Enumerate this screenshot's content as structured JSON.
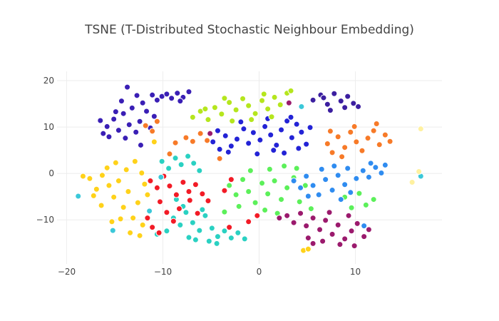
{
  "chart_data": {
    "type": "scatter",
    "title": "TSNE (T-Distributed Stochastic Neighbour Embedding)",
    "xlabel": "",
    "ylabel": "",
    "xlim": [
      -21,
      19
    ],
    "ylim": [
      -19.5,
      22
    ],
    "x_ticks": [
      -20,
      -10,
      0,
      10
    ],
    "x_tick_labels": [
      "−20",
      "−10",
      "0",
      "10"
    ],
    "y_ticks": [
      -10,
      0,
      10,
      20
    ],
    "y_tick_labels": [
      "−10",
      "0",
      "10",
      "20"
    ],
    "grid": true,
    "legend": "none",
    "marker_outline": "#ffffff",
    "series": [
      {
        "color": "#3a1fb5",
        "points": [
          [
            -16.2,
            8.6
          ],
          [
            -15.8,
            10.1
          ],
          [
            -15.1,
            11.7
          ],
          [
            -14.6,
            9.3
          ],
          [
            -14.1,
            12.9
          ],
          [
            -13.5,
            10.5
          ],
          [
            -13.2,
            14.1
          ],
          [
            -12.8,
            8.9
          ],
          [
            -12.4,
            11.2
          ],
          [
            -12.1,
            15.2
          ],
          [
            -11.7,
            13.4
          ],
          [
            -11.3,
            9.8
          ],
          [
            -10.9,
            12.3
          ],
          [
            -10.6,
            15.8
          ],
          [
            -10.1,
            16.6
          ],
          [
            -9.6,
            17.1
          ],
          [
            -9.1,
            16.2
          ],
          [
            -8.5,
            17.3
          ],
          [
            -7.9,
            16.4
          ],
          [
            -7.3,
            17.6
          ],
          [
            -13.7,
            18.6
          ],
          [
            -14.9,
            13.3
          ],
          [
            -15.6,
            7.9
          ],
          [
            -12.7,
            16.8
          ],
          [
            -8.2,
            15.6
          ],
          [
            -11.1,
            16.9
          ],
          [
            -13.9,
            7.6
          ],
          [
            -12.3,
            6.1
          ],
          [
            -16.5,
            11.4
          ],
          [
            -14.3,
            15.6
          ]
        ]
      },
      {
        "color": "#2323d6",
        "points": [
          [
            -4.8,
            6.8
          ],
          [
            -4.1,
            5.2
          ],
          [
            -3.5,
            8.1
          ],
          [
            -2.9,
            5.9
          ],
          [
            -2.3,
            7.4
          ],
          [
            -1.6,
            9.6
          ],
          [
            -1.1,
            6.5
          ],
          [
            -0.6,
            8.8
          ],
          [
            0.1,
            7.2
          ],
          [
            0.6,
            10.1
          ],
          [
            1.2,
            8.3
          ],
          [
            1.8,
            6.1
          ],
          [
            2.3,
            9.4
          ],
          [
            2.9,
            11.3
          ],
          [
            3.4,
            7.7
          ],
          [
            3.9,
            10.6
          ],
          [
            4.4,
            8.9
          ],
          [
            4.9,
            6.3
          ],
          [
            5.3,
            9.9
          ],
          [
            -3.2,
            4.6
          ],
          [
            -0.2,
            4.2
          ],
          [
            1.5,
            5.0
          ],
          [
            2.6,
            4.4
          ],
          [
            4.1,
            5.4
          ],
          [
            -1.9,
            11.1
          ],
          [
            0.9,
            11.8
          ],
          [
            -4.3,
            9.2
          ],
          [
            3.3,
            12.1
          ]
        ]
      },
      {
        "color": "#3c1fa0",
        "points": [
          [
            5.6,
            15.8
          ],
          [
            6.4,
            16.9
          ],
          [
            7.1,
            14.9
          ],
          [
            7.8,
            17.2
          ],
          [
            8.5,
            15.6
          ],
          [
            9.2,
            16.6
          ],
          [
            9.8,
            15.1
          ],
          [
            10.3,
            14.4
          ],
          [
            7.4,
            13.6
          ],
          [
            6.7,
            16.3
          ],
          [
            8.9,
            14.2
          ]
        ]
      },
      {
        "color": "#b5e61d",
        "points": [
          [
            -6.9,
            12.1
          ],
          [
            -6.1,
            13.4
          ],
          [
            -5.3,
            11.6
          ],
          [
            -4.6,
            14.2
          ],
          [
            -3.9,
            12.8
          ],
          [
            -3.1,
            15.3
          ],
          [
            -2.4,
            13.7
          ],
          [
            -1.7,
            16.1
          ],
          [
            -1.1,
            14.6
          ],
          [
            -0.4,
            12.9
          ],
          [
            0.3,
            15.7
          ],
          [
            0.9,
            13.9
          ],
          [
            1.6,
            16.4
          ],
          [
            2.2,
            14.8
          ],
          [
            2.9,
            17.3
          ],
          [
            3.3,
            17.8
          ],
          [
            -3.6,
            16.2
          ],
          [
            -0.8,
            11.6
          ],
          [
            1.3,
            12.2
          ],
          [
            -5.6,
            13.9
          ],
          [
            -2.8,
            11.3
          ],
          [
            0.5,
            17.1
          ]
        ]
      },
      {
        "color": "#f77a28",
        "points": [
          [
            -11.8,
            10.3
          ],
          [
            -11.1,
            9.1
          ],
          [
            -10.6,
            11.2
          ],
          [
            -7.6,
            7.7
          ],
          [
            -6.9,
            6.9
          ],
          [
            -6.1,
            8.6
          ],
          [
            -8.7,
            6.6
          ],
          [
            -5.4,
            7.1
          ],
          [
            7.1,
            6.4
          ],
          [
            7.6,
            4.5
          ],
          [
            8.2,
            7.9
          ],
          [
            8.9,
            5.6
          ],
          [
            9.5,
            8.9
          ],
          [
            10.1,
            6.8
          ],
          [
            10.7,
            4.9
          ],
          [
            11.3,
            7.6
          ],
          [
            11.9,
            9.2
          ],
          [
            12.5,
            6.2
          ],
          [
            13.1,
            8.3
          ],
          [
            8.6,
            3.6
          ],
          [
            9.9,
            10.1
          ],
          [
            12.2,
            10.7
          ],
          [
            7.4,
            9.1
          ],
          [
            13.6,
            6.9
          ],
          [
            -9.3,
            4.2
          ],
          [
            -4.1,
            3.2
          ]
        ]
      },
      {
        "color": "#2ad1c2",
        "points": [
          [
            -10.1,
            2.6
          ],
          [
            -9.4,
            1.1
          ],
          [
            -8.7,
            3.3
          ],
          [
            -8.1,
            1.9
          ],
          [
            -7.4,
            3.7
          ],
          [
            -6.8,
            2.2
          ],
          [
            -6.2,
            0.6
          ],
          [
            -8.9,
            -9.6
          ],
          [
            -8.2,
            -11.1
          ],
          [
            -7.6,
            -8.4
          ],
          [
            -6.9,
            -10.6
          ],
          [
            -6.2,
            -12.3
          ],
          [
            -5.6,
            -9.1
          ],
          [
            -4.9,
            -11.8
          ],
          [
            -4.3,
            -13.6
          ],
          [
            -3.6,
            -12.4
          ],
          [
            -2.9,
            -13.9
          ],
          [
            -2.2,
            -12.8
          ],
          [
            -1.5,
            -14.1
          ],
          [
            -7.3,
            -13.8
          ],
          [
            -5.2,
            -14.6
          ],
          [
            -8.6,
            -5.6
          ],
          [
            -7.9,
            -7.1
          ],
          [
            -5.9,
            -7.8
          ],
          [
            -10.6,
            -13.1
          ],
          [
            -9.6,
            -12.4
          ],
          [
            -4.4,
            -15.1
          ],
          [
            -6.6,
            -14.3
          ]
        ]
      },
      {
        "color": "#f21b26",
        "points": [
          [
            -11.3,
            -1.6
          ],
          [
            -10.6,
            -3.1
          ],
          [
            -9.9,
            -0.6
          ],
          [
            -9.3,
            -2.7
          ],
          [
            -8.6,
            -4.6
          ],
          [
            -7.9,
            -1.9
          ],
          [
            -7.3,
            -3.9
          ],
          [
            -6.6,
            -2.4
          ],
          [
            -5.9,
            -4.4
          ],
          [
            -10.3,
            -6.1
          ],
          [
            -9.6,
            -8.4
          ],
          [
            -8.9,
            -10.3
          ],
          [
            -8.3,
            -7.6
          ],
          [
            -11.6,
            -9.6
          ],
          [
            -11.1,
            -11.6
          ],
          [
            -10.4,
            -12.8
          ],
          [
            -5.3,
            -5.9
          ],
          [
            -3.6,
            -3.7
          ],
          [
            -2.9,
            -1.3
          ],
          [
            -1.1,
            -10.4
          ],
          [
            -0.2,
            -9.1
          ],
          [
            -3.1,
            -11.6
          ],
          [
            -6.4,
            -8.6
          ],
          [
            -7.2,
            -5.8
          ]
        ]
      },
      {
        "color": "#ffd21a",
        "points": [
          [
            -17.6,
            -1.1
          ],
          [
            -16.9,
            -3.4
          ],
          [
            -16.3,
            -0.4
          ],
          [
            -15.6,
            -2.6
          ],
          [
            -15.1,
            -5.1
          ],
          [
            -14.6,
            -1.6
          ],
          [
            -14.1,
            -7.3
          ],
          [
            -13.6,
            -3.9
          ],
          [
            -13.1,
            -9.6
          ],
          [
            -12.6,
            -6.3
          ],
          [
            -12.1,
            -11.1
          ],
          [
            -11.6,
            -4.6
          ],
          [
            -15.8,
            1.2
          ],
          [
            -14.9,
            2.3
          ],
          [
            -13.8,
            0.8
          ],
          [
            -12.9,
            2.6
          ],
          [
            -16.4,
            -6.9
          ],
          [
            -13.4,
            -12.8
          ],
          [
            -12.4,
            -13.4
          ],
          [
            -14.4,
            -9.8
          ],
          [
            -11.9,
            -2.3
          ],
          [
            -17.2,
            -4.8
          ],
          [
            -12.2,
            0.1
          ],
          [
            -15.3,
            -10.4
          ],
          [
            -18.3,
            -0.6
          ],
          [
            4.6,
            -16.6
          ],
          [
            5.1,
            -16.3
          ],
          [
            -10.9,
            6.8
          ]
        ]
      },
      {
        "color": "#5cf05a",
        "points": [
          [
            -3.1,
            -2.6
          ],
          [
            -2.4,
            -4.6
          ],
          [
            -1.7,
            -1.3
          ],
          [
            -1.1,
            -3.9
          ],
          [
            -0.4,
            -6.3
          ],
          [
            0.3,
            -2.1
          ],
          [
            0.9,
            -4.4
          ],
          [
            1.6,
            -1.6
          ],
          [
            2.3,
            -5.6
          ],
          [
            2.9,
            -3.1
          ],
          [
            3.6,
            -0.9
          ],
          [
            4.2,
            -6.1
          ],
          [
            4.8,
            -2.6
          ],
          [
            5.4,
            -7.6
          ],
          [
            -0.9,
            0.6
          ],
          [
            1.1,
            0.9
          ],
          [
            2.6,
            1.6
          ],
          [
            3.9,
            1.1
          ],
          [
            -2.1,
            -7.1
          ],
          [
            0.6,
            -7.9
          ],
          [
            8.9,
            -5.1
          ],
          [
            9.6,
            -7.4
          ],
          [
            10.4,
            -4.3
          ],
          [
            11.1,
            -6.8
          ],
          [
            11.9,
            -5.6
          ],
          [
            1.9,
            -8.6
          ],
          [
            -3.6,
            -8.3
          ]
        ]
      },
      {
        "color": "#2f8cf0",
        "points": [
          [
            3.6,
            -1.6
          ],
          [
            4.3,
            -3.1
          ],
          [
            4.9,
            -0.6
          ],
          [
            5.6,
            -2.6
          ],
          [
            6.2,
            -4.6
          ],
          [
            6.9,
            -1.3
          ],
          [
            7.6,
            -3.6
          ],
          [
            8.2,
            -0.4
          ],
          [
            8.9,
            -2.4
          ],
          [
            9.5,
            -4.1
          ],
          [
            10.1,
            -1.1
          ],
          [
            10.8,
            0.6
          ],
          [
            11.4,
            -0.8
          ],
          [
            12.1,
            1.3
          ],
          [
            12.7,
            0.1
          ],
          [
            6.5,
            0.9
          ],
          [
            7.8,
            1.6
          ],
          [
            9.2,
            1.1
          ],
          [
            11.6,
            2.2
          ],
          [
            13.1,
            1.8
          ],
          [
            5.1,
            -4.9
          ],
          [
            8.5,
            -5.6
          ],
          [
            10.9,
            -11.3
          ]
        ]
      },
      {
        "color": "#9b1a6d",
        "points": [
          [
            2.9,
            -9.1
          ],
          [
            3.6,
            -10.6
          ],
          [
            4.3,
            -8.6
          ],
          [
            4.9,
            -11.3
          ],
          [
            5.6,
            -9.6
          ],
          [
            6.3,
            -12.1
          ],
          [
            6.9,
            -10.1
          ],
          [
            7.6,
            -13.1
          ],
          [
            8.2,
            -11.1
          ],
          [
            8.9,
            -14.1
          ],
          [
            9.6,
            -12.4
          ],
          [
            10.2,
            -10.8
          ],
          [
            10.9,
            -13.6
          ],
          [
            11.4,
            -12.1
          ],
          [
            6.6,
            -14.6
          ],
          [
            8.4,
            -15.3
          ],
          [
            9.9,
            -15.6
          ],
          [
            5.1,
            -13.9
          ],
          [
            7.3,
            -8.4
          ],
          [
            9.3,
            -9.1
          ],
          [
            2.1,
            -9.6
          ],
          [
            3.1,
            15.2
          ],
          [
            -5.1,
            8.6
          ],
          [
            5.6,
            -15.1
          ]
        ]
      },
      {
        "color": "#3bc8d9",
        "points": [
          [
            -18.8,
            -4.9
          ],
          [
            -15.2,
            -12.3
          ],
          [
            -11.4,
            -8.1
          ],
          [
            16.8,
            -0.6
          ],
          [
            4.4,
            14.4
          ],
          [
            -10.2,
            -0.8
          ]
        ]
      },
      {
        "color": "#fff1a0",
        "points": [
          [
            16.8,
            9.6
          ],
          [
            15.9,
            -1.9
          ],
          [
            16.6,
            0.4
          ]
        ]
      }
    ]
  }
}
